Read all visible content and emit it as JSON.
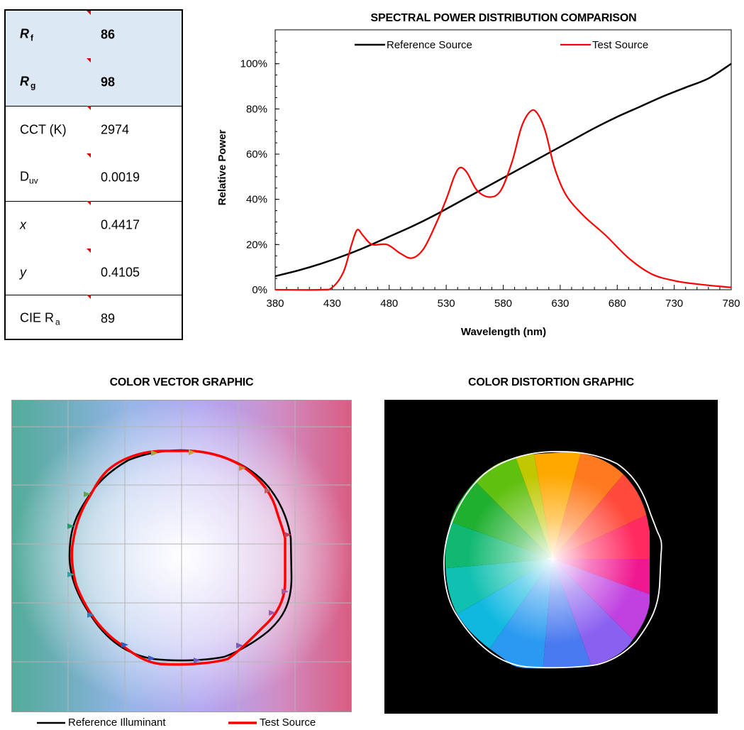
{
  "metrics": {
    "rf": {
      "label_main": "R",
      "label_sub": "f",
      "value": "86"
    },
    "rg": {
      "label_main": "R",
      "label_sub": "g",
      "value": "98"
    },
    "cct": {
      "label": "CCT (K)",
      "value": "2974"
    },
    "duv": {
      "label_main": "D",
      "label_sub": "uv",
      "value": "0.0019"
    },
    "x": {
      "label": "x",
      "value": "0.4417"
    },
    "y": {
      "label": "y",
      "value": "0.4105"
    },
    "ra": {
      "label_main": "CIE R",
      "label_sub": "a",
      "value": "89"
    }
  },
  "colors": {
    "highlight": "#dce8f4",
    "reference": "#000000",
    "test": "#ff0000",
    "comment_marker": "#e00000"
  },
  "chart_data": [
    {
      "type": "line",
      "title": "SPECTRAL POWER DISTRIBUTION COMPARISON",
      "xlabel": "Wavelength (nm)",
      "ylabel": "Relative Power",
      "xlim": [
        380,
        780
      ],
      "ylim": [
        0,
        1.15
      ],
      "x_ticks": [
        380,
        430,
        480,
        530,
        580,
        630,
        680,
        730,
        780
      ],
      "y_ticks": [
        "0%",
        "20%",
        "40%",
        "60%",
        "80%",
        "100%"
      ],
      "y_tick_values": [
        0,
        0.2,
        0.4,
        0.6,
        0.8,
        1.0
      ],
      "legend_position": "top",
      "series": [
        {
          "name": "Reference Source",
          "color": "#000000",
          "x": [
            380,
            400,
            420,
            440,
            460,
            480,
            500,
            520,
            540,
            560,
            580,
            600,
            620,
            640,
            660,
            680,
            700,
            720,
            740,
            760,
            780
          ],
          "y": [
            0.06,
            0.085,
            0.115,
            0.15,
            0.19,
            0.235,
            0.28,
            0.33,
            0.385,
            0.44,
            0.495,
            0.55,
            0.605,
            0.66,
            0.715,
            0.765,
            0.81,
            0.855,
            0.895,
            0.935,
            1.0
          ]
        },
        {
          "name": "Test Source",
          "color": "#ff0000",
          "x": [
            380,
            420,
            430,
            440,
            447,
            452,
            457,
            465,
            478,
            490,
            500,
            510,
            520,
            530,
            537,
            542,
            548,
            557,
            568,
            578,
            588,
            596,
            604,
            610,
            617,
            625,
            635,
            650,
            670,
            690,
            710,
            730,
            750,
            780
          ],
          "y": [
            0.0,
            0.0,
            0.01,
            0.08,
            0.2,
            0.265,
            0.24,
            0.2,
            0.2,
            0.16,
            0.14,
            0.18,
            0.28,
            0.4,
            0.5,
            0.54,
            0.52,
            0.44,
            0.41,
            0.44,
            0.57,
            0.72,
            0.79,
            0.78,
            0.7,
            0.54,
            0.42,
            0.33,
            0.24,
            0.14,
            0.07,
            0.04,
            0.025,
            0.01
          ]
        }
      ]
    },
    {
      "type": "scatter",
      "title": "COLOR VECTOR GRAPHIC",
      "legend_position": "bottom",
      "series": [
        {
          "name": "Reference Illuminant",
          "color": "#000000"
        },
        {
          "name": "Test Source",
          "color": "#ff0000"
        }
      ]
    },
    {
      "type": "scatter",
      "title": "COLOR DISTORTION GRAPHIC"
    }
  ]
}
